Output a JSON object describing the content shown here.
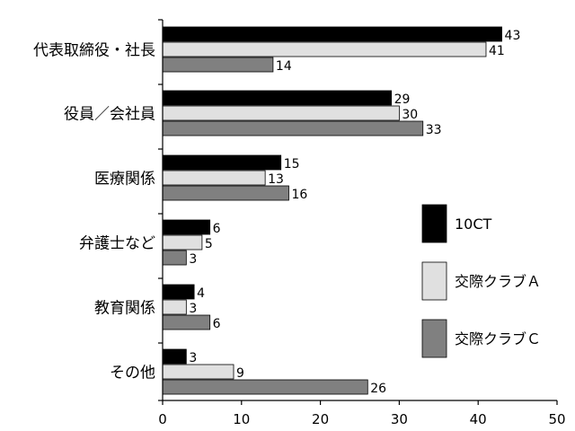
{
  "chart_data": {
    "type": "bar",
    "orientation": "horizontal",
    "categories": [
      "代表取締役・社長",
      "役員／会社員",
      "医療関係",
      "弁護士など",
      "教育関係",
      "その他"
    ],
    "series": [
      {
        "name": "10CT",
        "color": "#000000",
        "values": [
          43,
          29,
          15,
          6,
          4,
          3
        ]
      },
      {
        "name": "交際クラブＡ",
        "color": "#e0e0e0",
        "values": [
          41,
          30,
          13,
          5,
          3,
          9
        ]
      },
      {
        "name": "交際クラブＣ",
        "color": "#808080",
        "values": [
          14,
          33,
          16,
          3,
          6,
          26
        ]
      }
    ],
    "xlim": [
      0,
      50
    ],
    "xticks": [
      0,
      10,
      20,
      30,
      40,
      50
    ],
    "title": "",
    "xlabel": "",
    "ylabel": "",
    "grid": false,
    "legend_position": "right"
  }
}
